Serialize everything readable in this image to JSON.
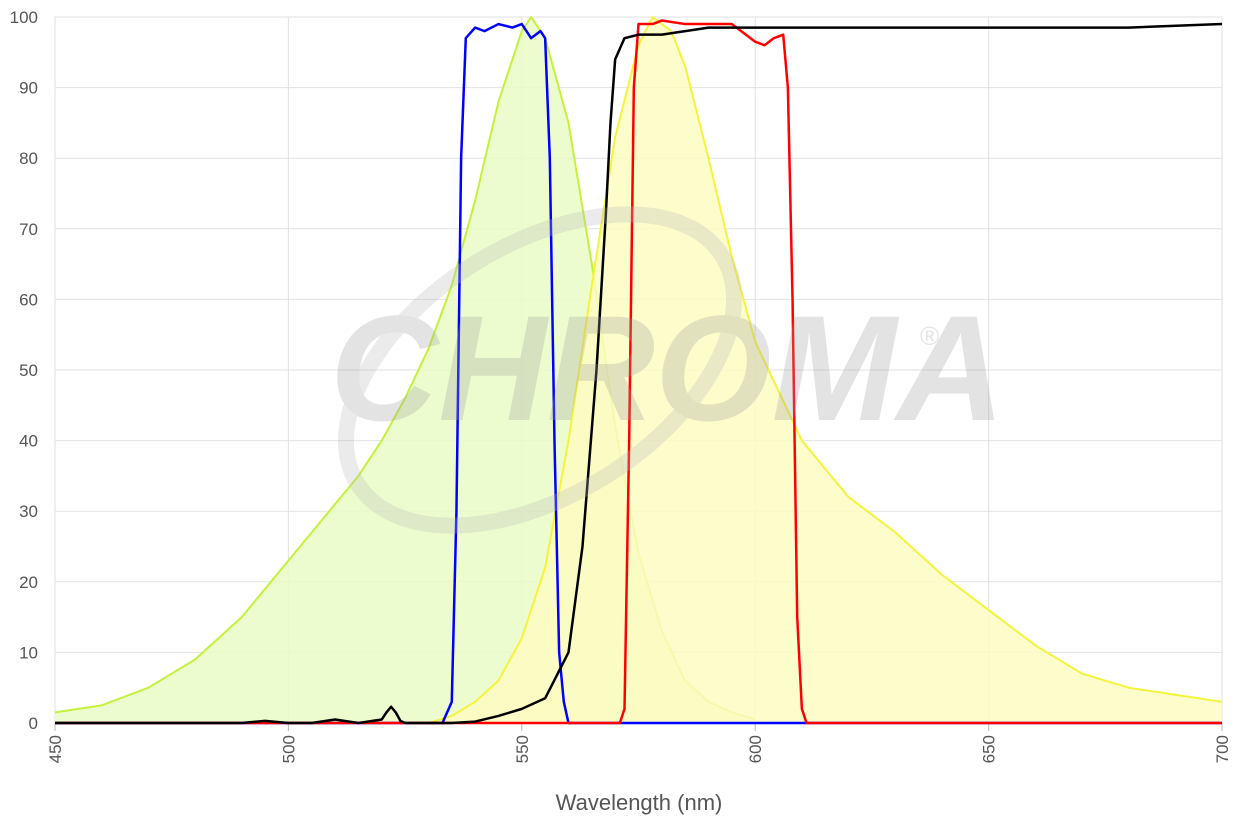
{
  "watermark": {
    "text": "CHROMA",
    "registered": "®"
  },
  "chart_data": {
    "type": "area",
    "xlabel": "Wavelength (nm)",
    "ylabel": "",
    "xlim": [
      450,
      700
    ],
    "ylim": [
      0,
      100
    ],
    "xticks": [
      450,
      500,
      550,
      600,
      650,
      700
    ],
    "yticks": [
      0,
      10,
      20,
      30,
      40,
      50,
      60,
      70,
      80,
      90,
      100
    ],
    "grid": true,
    "legend": "none",
    "series": [
      {
        "style": "fill",
        "stroke": "#c4f23a",
        "fill": "#eafbc6",
        "x": [
          450,
          460,
          470,
          480,
          490,
          500,
          510,
          515,
          520,
          525,
          530,
          535,
          540,
          545,
          550,
          552,
          555,
          560,
          565,
          570,
          575,
          580,
          585,
          590,
          595,
          600
        ],
        "y": [
          1.5,
          2.5,
          5,
          9,
          15,
          23,
          31,
          35,
          40,
          46,
          53,
          62,
          74,
          88,
          98,
          100,
          97,
          85,
          65,
          42,
          24,
          13,
          6,
          3,
          1.5,
          0.5
        ]
      },
      {
        "style": "fill",
        "stroke": "#f4f43a",
        "fill": "#fdfbc2",
        "x": [
          530,
          535,
          540,
          545,
          550,
          555,
          560,
          565,
          570,
          575,
          578,
          582,
          585,
          590,
          595,
          600,
          610,
          620,
          630,
          640,
          650,
          660,
          670,
          680,
          690,
          700
        ],
        "y": [
          0,
          1,
          3,
          6,
          12,
          22,
          40,
          62,
          83,
          96,
          100,
          98,
          93,
          80,
          66,
          54,
          40,
          32,
          27,
          21,
          16,
          11,
          7,
          5,
          4,
          3
        ]
      },
      {
        "style": "line",
        "stroke": "#0000ff",
        "x": [
          450,
          533,
          535,
          536,
          537,
          538,
          540,
          542,
          545,
          548,
          550,
          552,
          554,
          555,
          556,
          557,
          558,
          559,
          560,
          700
        ],
        "y": [
          0,
          0,
          3,
          30,
          80,
          97,
          98.5,
          98,
          99,
          98.5,
          99,
          97,
          98,
          97,
          80,
          40,
          10,
          3,
          0,
          0
        ]
      },
      {
        "style": "line",
        "stroke": "#ff0000",
        "x": [
          450,
          571,
          572,
          573,
          574,
          575,
          578,
          580,
          585,
          590,
          595,
          600,
          602,
          604,
          606,
          607,
          608,
          609,
          610,
          611,
          700
        ],
        "y": [
          0,
          0,
          2,
          40,
          90,
          99,
          99,
          99.5,
          99,
          99,
          99,
          96.5,
          96,
          97,
          97.5,
          90,
          60,
          15,
          2,
          0,
          0
        ]
      },
      {
        "style": "line",
        "stroke": "#000000",
        "x": [
          450,
          490,
          495,
          500,
          505,
          510,
          515,
          520,
          521,
          522,
          523,
          524,
          525,
          530,
          535,
          540,
          545,
          550,
          555,
          560,
          563,
          566,
          568,
          569,
          570,
          572,
          575,
          580,
          590,
          600,
          620,
          650,
          680,
          700
        ],
        "y": [
          0,
          0,
          0.3,
          0,
          0,
          0.5,
          0,
          0.5,
          1.5,
          2.3,
          1.5,
          0.3,
          0,
          0,
          0,
          0.2,
          1,
          2,
          3.5,
          10,
          25,
          50,
          72,
          85,
          94,
          97,
          97.5,
          97.5,
          98.5,
          98.5,
          98.5,
          98.5,
          98.5,
          99
        ]
      }
    ]
  }
}
